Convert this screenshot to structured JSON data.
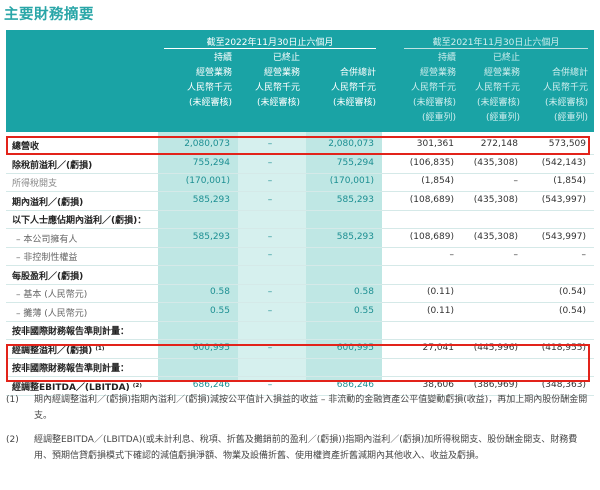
{
  "title": "主要財務摘要",
  "header": {
    "period_2022": "截至2022年11月30日止六個月",
    "period_2021": "截至2021年11月30日止六個月",
    "cols": [
      [
        "持續",
        "經營業務",
        "人民幣千元",
        "(未經審核)",
        ""
      ],
      [
        "已終止",
        "經營業務",
        "人民幣千元",
        "(未經審核)",
        ""
      ],
      [
        "",
        "合併總計",
        "人民幣千元",
        "(未經審核)",
        ""
      ],
      [
        "持續",
        "經營業務",
        "人民幣千元",
        "(未經審核)",
        "(經重列)"
      ],
      [
        "已終止",
        "經營業務",
        "人民幣千元",
        "(未經審核)",
        "(經重列)"
      ],
      [
        "",
        "合併總計",
        "人民幣千元",
        "(未經審核)",
        "(經重列)"
      ]
    ]
  },
  "rows": [
    {
      "label": "總營收",
      "v": [
        "2,080,073",
        "–",
        "2,080,073",
        "301,361",
        "272,148",
        "573,509"
      ]
    },
    {
      "label": "除稅前溢利／(虧損)",
      "v": [
        "755,294",
        "–",
        "755,294",
        "(106,835)",
        "(435,308)",
        "(542,143)"
      ]
    },
    {
      "label": "所得稅開支",
      "v": [
        "(170,001)",
        "–",
        "(170,001)",
        "(1,854)",
        "–",
        "(1,854)"
      ]
    },
    {
      "label": "期內溢利／(虧損)",
      "v": [
        "585,293",
        "–",
        "585,293",
        "(108,689)",
        "(435,308)",
        "(543,997)"
      ]
    },
    {
      "label": "以下人士應佔期內溢利／(虧損)：",
      "v": [
        "",
        "",
        "",
        "",
        "",
        ""
      ]
    },
    {
      "label": "– 本公司擁有人",
      "v": [
        "585,293",
        "–",
        "585,293",
        "(108,689)",
        "(435,308)",
        "(543,997)"
      ]
    },
    {
      "label": "– 非控制性權益",
      "v": [
        "",
        "–",
        "",
        "–",
        "–",
        "–"
      ]
    },
    {
      "label": "每股盈利／(虧損)",
      "v": [
        "",
        "",
        "",
        "",
        "",
        ""
      ]
    },
    {
      "label": "– 基本 (人民幣元)",
      "v": [
        "0.58",
        "–",
        "0.58",
        "(0.11)",
        "",
        "(0.54)"
      ]
    },
    {
      "label": "– 攤薄 (人民幣元)",
      "v": [
        "0.55",
        "–",
        "0.55",
        "(0.11)",
        "",
        "(0.54)"
      ]
    },
    {
      "label": "按非國際財務報告準則計量：",
      "v": [
        "",
        "",
        "",
        "",
        "",
        ""
      ]
    },
    {
      "label": "經調整溢利／(虧損) ⁽¹⁾",
      "v": [
        "600,995",
        "–",
        "600,995",
        "27,041",
        "(445,996)",
        "(418,955)"
      ]
    },
    {
      "label": "按非國際財務報告準則計量：",
      "v": [
        "",
        "",
        "",
        "",
        "",
        ""
      ]
    },
    {
      "label": "經調整EBITDA／(LBITDA) ⁽²⁾",
      "v": [
        "686,246",
        "–",
        "686,246",
        "38,606",
        "(386,969)",
        "(348,363)"
      ]
    }
  ],
  "notes": [
    {
      "num": "(1)",
      "text": "期內經調整溢利／(虧損)指期內溢利／(虧損)減按公平值計入損益的收益 – 非流動的金融資產公平值變動虧損(收益)，再加上期內股份酬金開支。"
    },
    {
      "num": "(2)",
      "text": "經調整EBITDA／(LBITDA)(或未計利息、稅項、折舊及攤銷前的盈利／(虧損))指期內溢利／(虧損)加所得稅開支、股份酬金開支、財務費用、預期信貸虧損模式下確認的減值虧損淨額、物業及設備折舊、使用權資產折舊減期內其他收入、收益及虧損。"
    }
  ]
}
